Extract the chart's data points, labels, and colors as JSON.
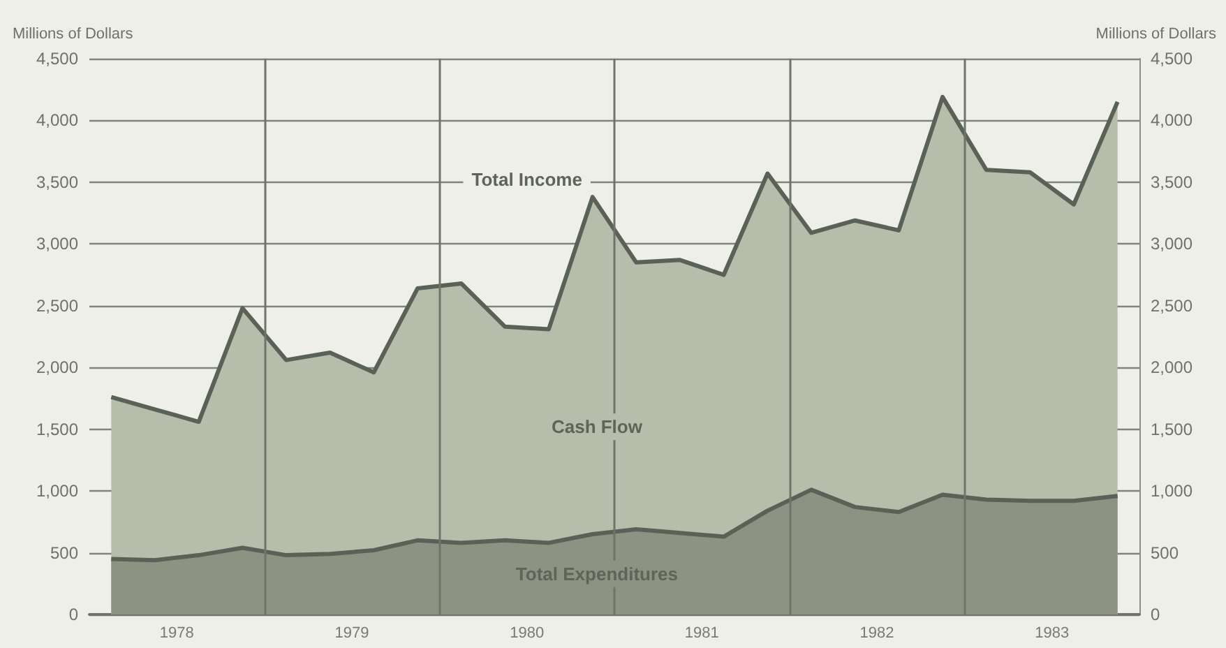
{
  "chart_data": {
    "type": "area",
    "ylabel": "Millions of Dollars",
    "y2label": "Millions of Dollars",
    "annotations": [
      "Cash Flow"
    ],
    "x": [
      1978.125,
      1978.375,
      1978.625,
      1978.875,
      1979.125,
      1979.375,
      1979.625,
      1979.875,
      1980.125,
      1980.375,
      1980.625,
      1980.875,
      1981.125,
      1981.375,
      1981.625,
      1981.875,
      1982.125,
      1982.375,
      1982.625,
      1982.875,
      1983.125,
      1983.375,
      1983.625,
      1983.875
    ],
    "series": [
      {
        "name": "Total Income",
        "color": "#b7bcab",
        "values": [
          1760,
          1660,
          1560,
          2480,
          2060,
          2120,
          1960,
          2640,
          2680,
          2330,
          2310,
          3380,
          2850,
          2870,
          2750,
          3570,
          3090,
          3190,
          3110,
          4190,
          3600,
          3580,
          3320,
          4150
        ]
      },
      {
        "name": "Total Expenditures",
        "color": "#8d9383",
        "values": [
          450,
          440,
          480,
          540,
          480,
          490,
          520,
          600,
          580,
          600,
          580,
          650,
          690,
          660,
          630,
          840,
          1010,
          870,
          830,
          970,
          930,
          920,
          920,
          960
        ]
      }
    ],
    "xlim": [
      1978,
      1984
    ],
    "xticks": [
      {
        "value": 1978.5,
        "label": "1978"
      },
      {
        "value": 1979,
        "label": null
      },
      {
        "value": 1979.5,
        "label": "1979"
      },
      {
        "value": 1980,
        "label": null
      },
      {
        "value": 1980.5,
        "label": "1980"
      },
      {
        "value": 1981,
        "label": null
      },
      {
        "value": 1981.5,
        "label": "1981"
      },
      {
        "value": 1982,
        "label": null
      },
      {
        "value": 1982.5,
        "label": "1982"
      },
      {
        "value": 1983,
        "label": null
      },
      {
        "value": 1983.5,
        "label": "1983"
      }
    ],
    "ylim": [
      0,
      4500
    ],
    "yticks": [
      0,
      500,
      {
        "value": 1000,
        "label": "1,000"
      },
      {
        "value": 1500,
        "label": "1,500"
      },
      {
        "value": 2000,
        "label": "2,000"
      },
      {
        "value": 2500,
        "label": "2,500"
      },
      {
        "value": 3000,
        "label": "3,000"
      },
      {
        "value": 3500,
        "label": "3,500"
      },
      {
        "value": 4000,
        "label": "4,000"
      },
      {
        "value": 4500,
        "label": "4,500"
      }
    ],
    "y2lim": [
      0,
      4500
    ],
    "y2ticks": [
      0,
      500,
      {
        "value": 1000,
        "label": "1,000"
      },
      {
        "value": 1500,
        "label": "1,500"
      },
      {
        "value": 2000,
        "label": "2,000"
      },
      {
        "value": 2500,
        "label": "2,500"
      },
      {
        "value": 3000,
        "label": "3,000"
      },
      {
        "value": 3500,
        "label": "3,500"
      },
      {
        "value": 4000,
        "label": "4,000"
      },
      {
        "value": 4500,
        "label": "4,500"
      }
    ],
    "grid": true,
    "legend": false,
    "marker": "none",
    "line_style": "solid"
  }
}
